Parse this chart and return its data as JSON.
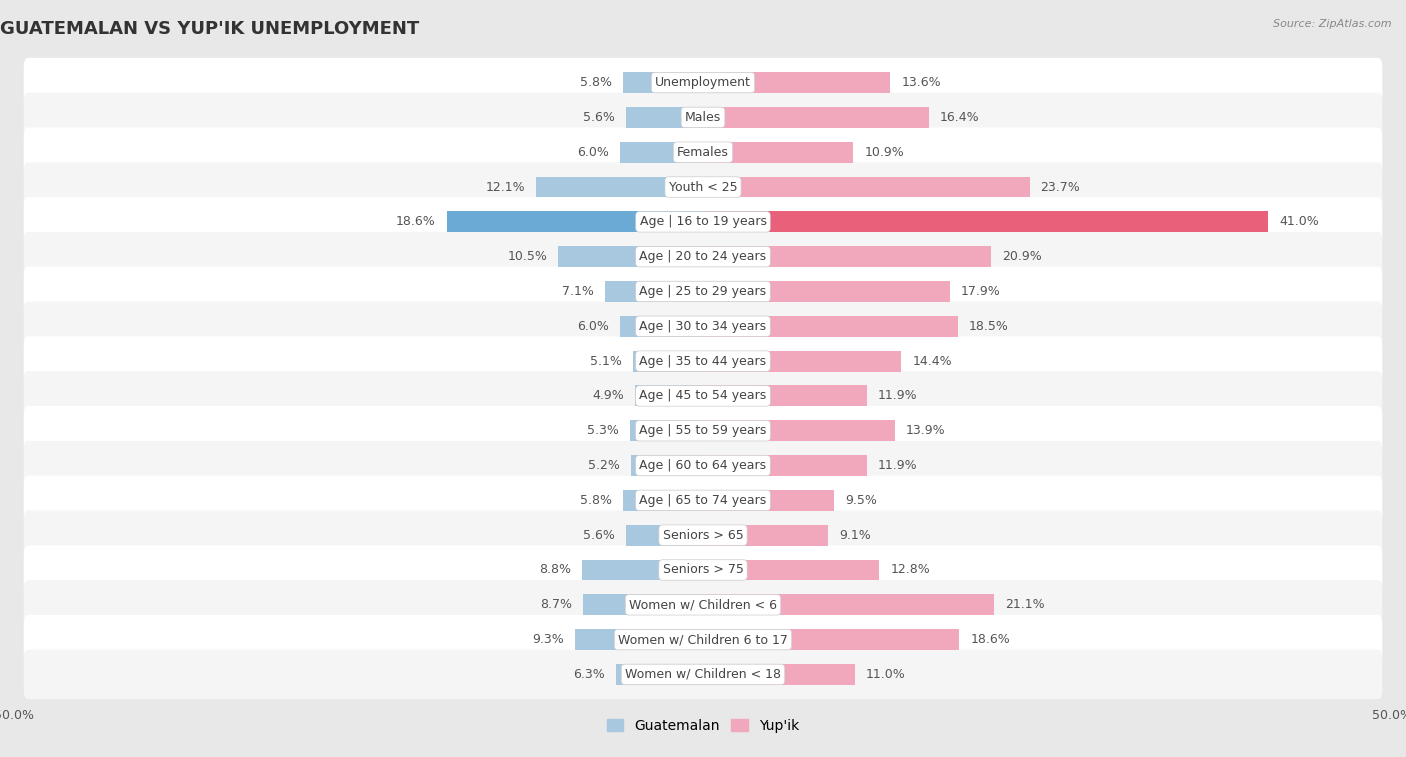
{
  "title": "GUATEMALAN VS YUP'IK UNEMPLOYMENT",
  "source": "Source: ZipAtlas.com",
  "categories": [
    "Unemployment",
    "Males",
    "Females",
    "Youth < 25",
    "Age | 16 to 19 years",
    "Age | 20 to 24 years",
    "Age | 25 to 29 years",
    "Age | 30 to 34 years",
    "Age | 35 to 44 years",
    "Age | 45 to 54 years",
    "Age | 55 to 59 years",
    "Age | 60 to 64 years",
    "Age | 65 to 74 years",
    "Seniors > 65",
    "Seniors > 75",
    "Women w/ Children < 6",
    "Women w/ Children 6 to 17",
    "Women w/ Children < 18"
  ],
  "guatemalan": [
    5.8,
    5.6,
    6.0,
    12.1,
    18.6,
    10.5,
    7.1,
    6.0,
    5.1,
    4.9,
    5.3,
    5.2,
    5.8,
    5.6,
    8.8,
    8.7,
    9.3,
    6.3
  ],
  "yupik": [
    13.6,
    16.4,
    10.9,
    23.7,
    41.0,
    20.9,
    17.9,
    18.5,
    14.4,
    11.9,
    13.9,
    11.9,
    9.5,
    9.1,
    12.8,
    21.1,
    18.6,
    11.0
  ],
  "guatemalan_color": "#A8C8E0",
  "yupik_color": "#F2A8BC",
  "yupik_highlight_color": "#E8607A",
  "guatemalan_highlight_color": "#6AAAD4",
  "highlight_index": 4,
  "axis_max": 50.0,
  "bg_color": "#e8e8e8",
  "row_color_odd": "#f5f5f5",
  "row_color_even": "#ffffff",
  "bar_height": 0.6,
  "title_fontsize": 13,
  "label_fontsize": 9,
  "value_fontsize": 9,
  "tick_fontsize": 9,
  "legend_fontsize": 10
}
